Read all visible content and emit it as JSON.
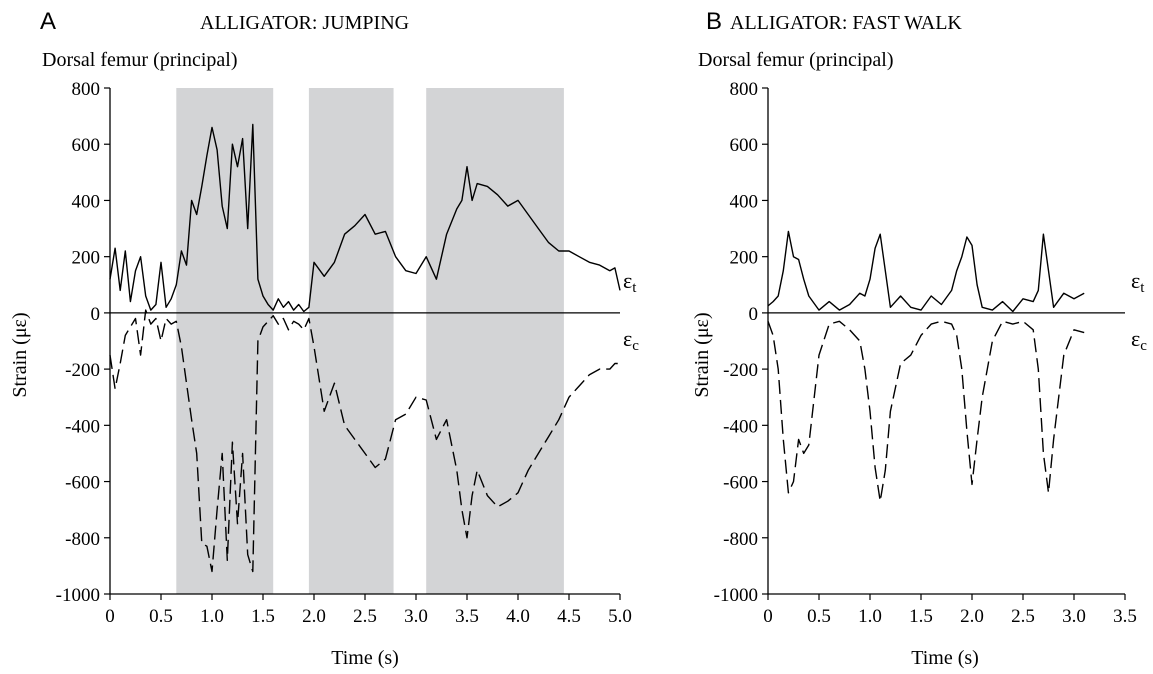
{
  "chart_data": [
    {
      "type": "line",
      "panel": "A",
      "title": "ALLIGATOR:  JUMPING",
      "subtitle": "Dorsal femur (principal)",
      "xlabel": "Time (s)",
      "ylabel": "Strain (με)",
      "xlim": [
        0,
        5.0
      ],
      "ylim": [
        -1000,
        800
      ],
      "xticks": [
        "0",
        "0.5",
        "1.0",
        "1.5",
        "2.0",
        "2.5",
        "3.0",
        "3.5",
        "4.0",
        "4.5",
        "5.0"
      ],
      "yticks": [
        "800",
        "600",
        "400",
        "200",
        "0",
        "-200",
        "-400",
        "-600",
        "-800",
        "-1000"
      ],
      "grid": false,
      "shaded_intervals": [
        [
          0.65,
          1.6
        ],
        [
          1.95,
          2.78
        ],
        [
          3.1,
          4.45
        ]
      ],
      "series": [
        {
          "name": "εt",
          "style": "solid",
          "x": [
            0,
            0.05,
            0.1,
            0.15,
            0.2,
            0.25,
            0.3,
            0.35,
            0.4,
            0.45,
            0.5,
            0.55,
            0.6,
            0.65,
            0.7,
            0.75,
            0.8,
            0.85,
            0.9,
            0.95,
            1.0,
            1.05,
            1.1,
            1.15,
            1.2,
            1.25,
            1.3,
            1.35,
            1.4,
            1.45,
            1.5,
            1.55,
            1.6,
            1.65,
            1.7,
            1.75,
            1.8,
            1.85,
            1.9,
            1.95,
            2.0,
            2.1,
            2.2,
            2.3,
            2.4,
            2.5,
            2.6,
            2.7,
            2.8,
            2.9,
            3.0,
            3.1,
            3.2,
            3.3,
            3.4,
            3.45,
            3.5,
            3.55,
            3.6,
            3.7,
            3.8,
            3.9,
            4.0,
            4.1,
            4.2,
            4.3,
            4.4,
            4.5,
            4.6,
            4.7,
            4.8,
            4.9,
            4.95,
            5.0
          ],
          "values": [
            120,
            230,
            80,
            220,
            40,
            150,
            200,
            60,
            10,
            30,
            180,
            20,
            50,
            100,
            220,
            170,
            400,
            350,
            450,
            560,
            660,
            580,
            380,
            300,
            600,
            520,
            620,
            300,
            670,
            120,
            60,
            30,
            10,
            50,
            20,
            40,
            10,
            30,
            5,
            20,
            180,
            130,
            180,
            280,
            310,
            350,
            280,
            290,
            200,
            150,
            140,
            200,
            120,
            280,
            370,
            400,
            520,
            400,
            460,
            450,
            420,
            380,
            400,
            350,
            300,
            250,
            220,
            220,
            200,
            180,
            170,
            150,
            160,
            80
          ]
        },
        {
          "name": "εc",
          "style": "dashed",
          "x": [
            0,
            0.05,
            0.1,
            0.15,
            0.2,
            0.25,
            0.3,
            0.35,
            0.4,
            0.45,
            0.5,
            0.55,
            0.6,
            0.65,
            0.7,
            0.75,
            0.8,
            0.85,
            0.9,
            0.95,
            1.0,
            1.05,
            1.1,
            1.15,
            1.2,
            1.25,
            1.3,
            1.35,
            1.4,
            1.45,
            1.5,
            1.55,
            1.6,
            1.65,
            1.7,
            1.75,
            1.8,
            1.85,
            1.9,
            1.95,
            2.0,
            2.1,
            2.2,
            2.3,
            2.4,
            2.5,
            2.6,
            2.7,
            2.8,
            2.9,
            3.0,
            3.1,
            3.2,
            3.3,
            3.4,
            3.45,
            3.5,
            3.55,
            3.6,
            3.7,
            3.8,
            3.9,
            4.0,
            4.1,
            4.2,
            4.3,
            4.4,
            4.5,
            4.6,
            4.7,
            4.8,
            4.9,
            4.95,
            5.0
          ],
          "values": [
            -150,
            -270,
            -180,
            -80,
            -50,
            -20,
            -150,
            10,
            -40,
            -20,
            -100,
            -20,
            -40,
            -30,
            -120,
            -250,
            -380,
            -500,
            -820,
            -830,
            -920,
            -700,
            -500,
            -880,
            -460,
            -750,
            -500,
            -860,
            -920,
            -100,
            -50,
            -30,
            -10,
            -40,
            -20,
            -60,
            -30,
            -40,
            -60,
            -20,
            -120,
            -350,
            -250,
            -400,
            -450,
            -500,
            -550,
            -520,
            -380,
            -360,
            -300,
            -310,
            -450,
            -380,
            -560,
            -700,
            -800,
            -650,
            -560,
            -650,
            -690,
            -670,
            -640,
            -560,
            -500,
            -440,
            -380,
            -300,
            -260,
            -220,
            -200,
            -200,
            -180,
            -180
          ]
        }
      ]
    },
    {
      "type": "line",
      "panel": "B",
      "title": "ALLIGATOR:  FAST WALK",
      "subtitle": "Dorsal femur (principal)",
      "xlabel": "Time (s)",
      "ylabel": "Strain (με)",
      "xlim": [
        0,
        3.5
      ],
      "ylim": [
        -1000,
        800
      ],
      "xticks": [
        "0",
        "0.5",
        "1.0",
        "1.5",
        "2.0",
        "2.5",
        "3.0",
        "3.5"
      ],
      "yticks": [
        "800",
        "600",
        "400",
        "200",
        "0",
        "-200",
        "-400",
        "-600",
        "-800",
        "-1000"
      ],
      "grid": false,
      "series": [
        {
          "name": "εt",
          "style": "solid",
          "x": [
            0,
            0.05,
            0.1,
            0.15,
            0.2,
            0.25,
            0.3,
            0.35,
            0.4,
            0.5,
            0.6,
            0.7,
            0.8,
            0.9,
            0.95,
            1.0,
            1.05,
            1.1,
            1.15,
            1.2,
            1.3,
            1.4,
            1.5,
            1.6,
            1.7,
            1.8,
            1.85,
            1.9,
            1.95,
            2.0,
            2.05,
            2.1,
            2.2,
            2.3,
            2.4,
            2.5,
            2.6,
            2.65,
            2.7,
            2.75,
            2.8,
            2.9,
            3.0,
            3.1
          ],
          "values": [
            25,
            40,
            60,
            150,
            290,
            200,
            190,
            120,
            60,
            10,
            40,
            10,
            30,
            70,
            60,
            120,
            230,
            280,
            150,
            20,
            60,
            20,
            10,
            60,
            30,
            80,
            150,
            200,
            270,
            240,
            100,
            20,
            10,
            40,
            5,
            50,
            40,
            80,
            280,
            150,
            20,
            70,
            50,
            70
          ]
        },
        {
          "name": "εc",
          "style": "dashed",
          "x": [
            0,
            0.05,
            0.1,
            0.15,
            0.2,
            0.25,
            0.3,
            0.35,
            0.4,
            0.5,
            0.6,
            0.7,
            0.8,
            0.9,
            0.95,
            1.0,
            1.05,
            1.1,
            1.15,
            1.2,
            1.3,
            1.4,
            1.5,
            1.6,
            1.7,
            1.8,
            1.85,
            1.9,
            1.95,
            2.0,
            2.05,
            2.1,
            2.2,
            2.3,
            2.4,
            2.5,
            2.6,
            2.65,
            2.7,
            2.75,
            2.8,
            2.9,
            3.0,
            3.1
          ],
          "values": [
            -30,
            -80,
            -200,
            -450,
            -640,
            -600,
            -450,
            -500,
            -470,
            -150,
            -40,
            -30,
            -60,
            -100,
            -200,
            -350,
            -550,
            -670,
            -560,
            -350,
            -180,
            -150,
            -80,
            -40,
            -30,
            -40,
            -80,
            -200,
            -420,
            -610,
            -450,
            -300,
            -100,
            -30,
            -40,
            -30,
            -60,
            -200,
            -500,
            -640,
            -450,
            -150,
            -60,
            -70
          ]
        }
      ]
    }
  ]
}
